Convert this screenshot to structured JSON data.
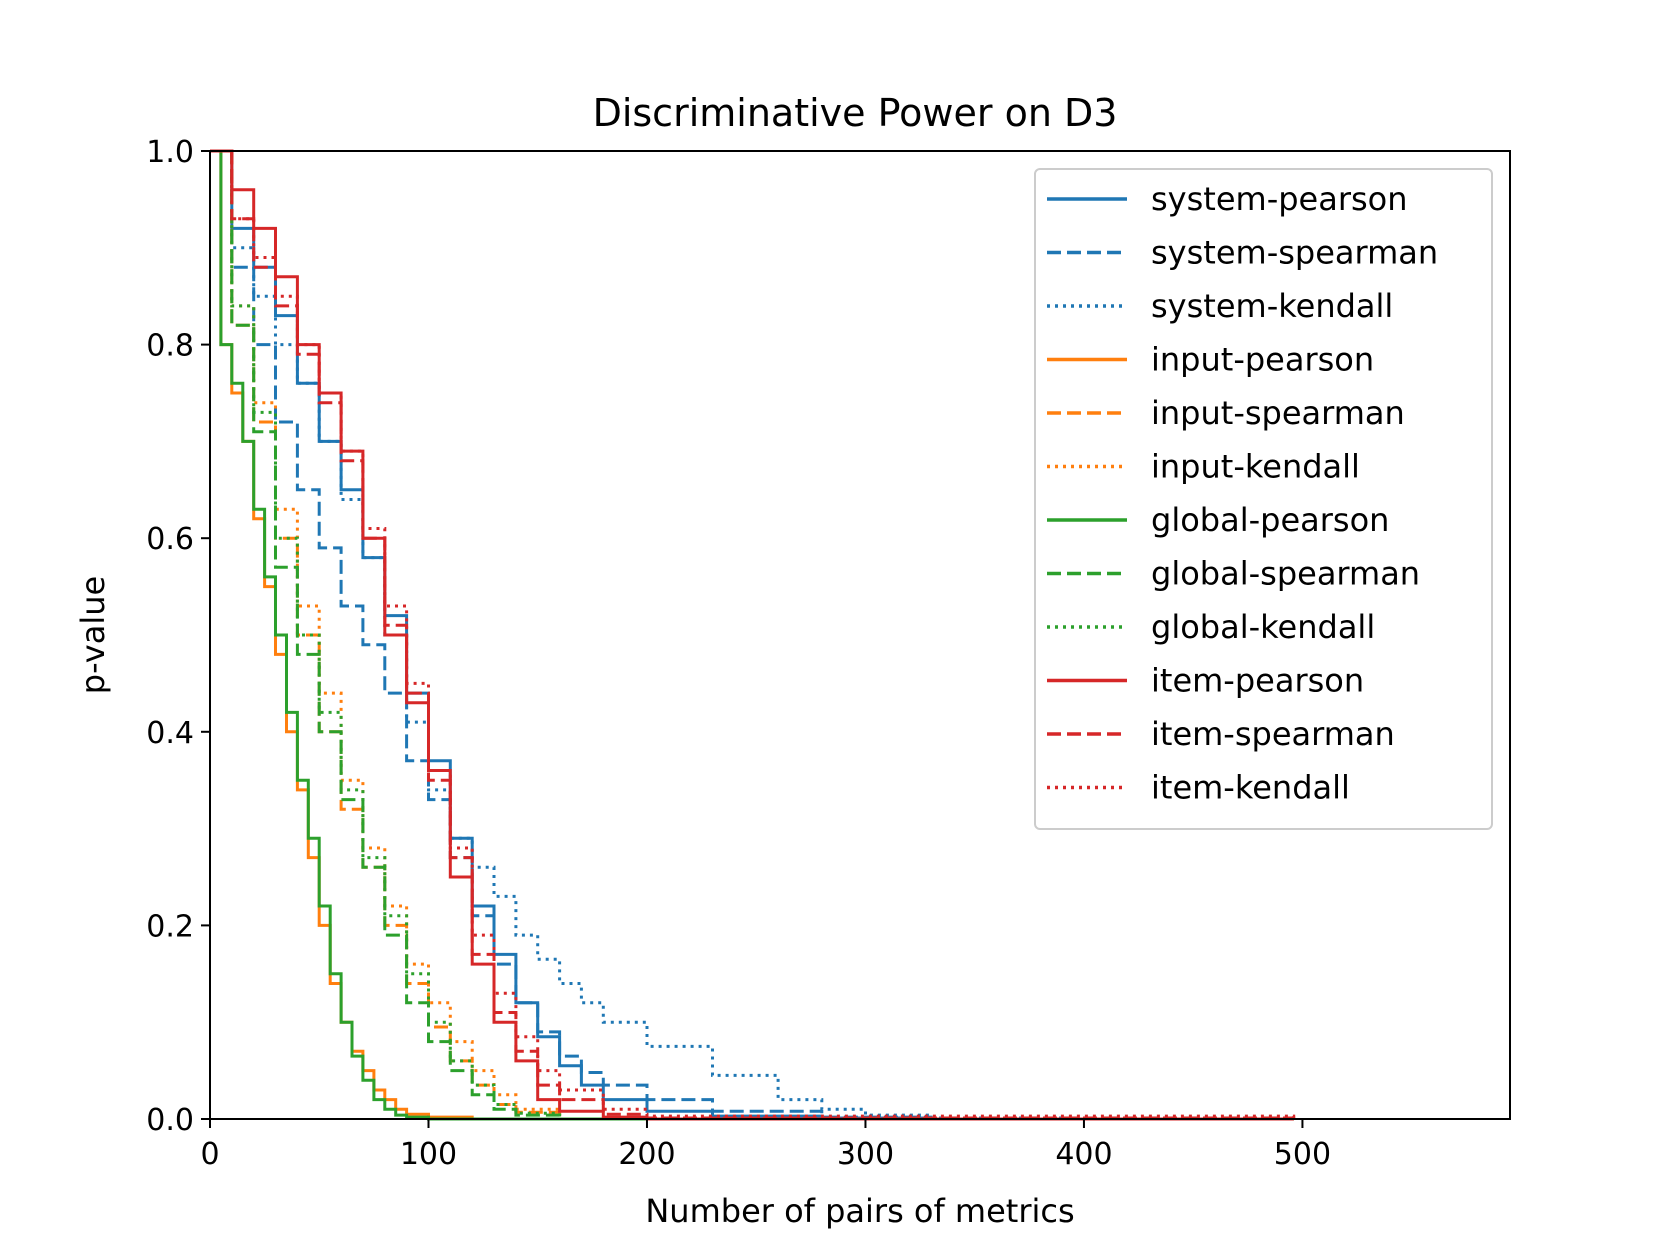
{
  "chart_data": {
    "type": "line",
    "title": "Discriminative Power on D3",
    "xlabel": "Number of pairs of metrics",
    "ylabel": "p-value",
    "xlim": [
      0,
      595
    ],
    "ylim": [
      0,
      1.0
    ],
    "xticks": [
      0,
      100,
      200,
      300,
      400,
      500
    ],
    "xtick_labels": [
      "0",
      "100",
      "200",
      "300",
      "400",
      "500"
    ],
    "yticks": [
      0.0,
      0.2,
      0.4,
      0.6,
      0.8,
      1.0
    ],
    "ytick_labels": [
      "0.0",
      "0.2",
      "0.4",
      "0.6",
      "0.8",
      "1.0"
    ],
    "grid": false,
    "legend_position": "top-right",
    "series": [
      {
        "name": "system-pearson",
        "color": "#1f77b4",
        "dash": "solid",
        "x": [
          0,
          10,
          20,
          30,
          40,
          50,
          60,
          70,
          80,
          90,
          100,
          110,
          120,
          130,
          140,
          150,
          160,
          170,
          180,
          200,
          230,
          280,
          330,
          400,
          496
        ],
        "y": [
          1.0,
          0.92,
          0.88,
          0.83,
          0.76,
          0.7,
          0.65,
          0.58,
          0.52,
          0.44,
          0.37,
          0.29,
          0.22,
          0.17,
          0.12,
          0.085,
          0.055,
          0.035,
          0.02,
          0.008,
          0.003,
          0.001,
          0.0,
          0.0,
          0.0
        ]
      },
      {
        "name": "system-spearman",
        "color": "#1f77b4",
        "dash": "dashed",
        "x": [
          0,
          10,
          20,
          30,
          40,
          50,
          60,
          70,
          80,
          90,
          100,
          110,
          120,
          130,
          140,
          150,
          160,
          170,
          180,
          200,
          230,
          280,
          330,
          400,
          496
        ],
        "y": [
          1.0,
          0.88,
          0.8,
          0.72,
          0.65,
          0.59,
          0.53,
          0.49,
          0.44,
          0.37,
          0.33,
          0.27,
          0.21,
          0.16,
          0.12,
          0.09,
          0.065,
          0.048,
          0.035,
          0.02,
          0.008,
          0.002,
          0.0,
          0.0,
          0.0
        ]
      },
      {
        "name": "system-kendall",
        "color": "#1f77b4",
        "dash": "dotted",
        "x": [
          0,
          10,
          20,
          30,
          40,
          50,
          60,
          70,
          80,
          90,
          100,
          110,
          120,
          130,
          140,
          150,
          160,
          170,
          180,
          200,
          230,
          260,
          280,
          300,
          330,
          400,
          496
        ],
        "y": [
          1.0,
          0.9,
          0.85,
          0.8,
          0.76,
          0.7,
          0.64,
          0.58,
          0.5,
          0.41,
          0.34,
          0.29,
          0.26,
          0.23,
          0.19,
          0.165,
          0.14,
          0.12,
          0.1,
          0.075,
          0.045,
          0.02,
          0.01,
          0.004,
          0.001,
          0.0,
          0.0
        ]
      },
      {
        "name": "input-pearson",
        "color": "#ff7f0e",
        "dash": "solid",
        "x": [
          0,
          5,
          10,
          15,
          20,
          25,
          30,
          35,
          40,
          45,
          50,
          55,
          60,
          65,
          70,
          75,
          80,
          85,
          90,
          100,
          120,
          496
        ],
        "y": [
          1.0,
          0.8,
          0.75,
          0.7,
          0.62,
          0.55,
          0.48,
          0.4,
          0.34,
          0.27,
          0.2,
          0.14,
          0.1,
          0.07,
          0.05,
          0.03,
          0.02,
          0.01,
          0.005,
          0.002,
          0.0,
          0.0
        ]
      },
      {
        "name": "input-spearman",
        "color": "#ff7f0e",
        "dash": "dashed",
        "x": [
          0,
          10,
          20,
          30,
          40,
          50,
          60,
          70,
          80,
          90,
          100,
          110,
          120,
          130,
          140,
          160,
          496
        ],
        "y": [
          1.0,
          0.82,
          0.72,
          0.6,
          0.5,
          0.4,
          0.32,
          0.26,
          0.2,
          0.14,
          0.095,
          0.06,
          0.035,
          0.015,
          0.007,
          0.0,
          0.0
        ]
      },
      {
        "name": "input-kendall",
        "color": "#ff7f0e",
        "dash": "dotted",
        "x": [
          0,
          10,
          20,
          30,
          40,
          50,
          60,
          70,
          80,
          90,
          100,
          110,
          120,
          130,
          140,
          160,
          496
        ],
        "y": [
          1.0,
          0.84,
          0.74,
          0.63,
          0.53,
          0.44,
          0.35,
          0.28,
          0.22,
          0.16,
          0.12,
          0.08,
          0.05,
          0.025,
          0.01,
          0.0,
          0.0
        ]
      },
      {
        "name": "global-pearson",
        "color": "#2ca02c",
        "dash": "solid",
        "x": [
          0,
          5,
          10,
          15,
          20,
          25,
          30,
          35,
          40,
          45,
          50,
          55,
          60,
          65,
          70,
          75,
          80,
          85,
          90,
          100,
          120,
          496
        ],
        "y": [
          1.0,
          0.8,
          0.76,
          0.7,
          0.63,
          0.56,
          0.5,
          0.42,
          0.35,
          0.29,
          0.22,
          0.15,
          0.1,
          0.065,
          0.04,
          0.02,
          0.01,
          0.004,
          0.002,
          0.0,
          0.0,
          0.0
        ]
      },
      {
        "name": "global-spearman",
        "color": "#2ca02c",
        "dash": "dashed",
        "x": [
          0,
          10,
          20,
          30,
          40,
          50,
          60,
          70,
          80,
          90,
          100,
          110,
          120,
          130,
          140,
          160,
          496
        ],
        "y": [
          1.0,
          0.82,
          0.71,
          0.57,
          0.48,
          0.4,
          0.33,
          0.26,
          0.19,
          0.12,
          0.08,
          0.05,
          0.025,
          0.01,
          0.004,
          0.0,
          0.0
        ]
      },
      {
        "name": "global-kendall",
        "color": "#2ca02c",
        "dash": "dotted",
        "x": [
          0,
          10,
          20,
          30,
          40,
          50,
          60,
          70,
          80,
          90,
          100,
          110,
          120,
          130,
          140,
          160,
          496
        ],
        "y": [
          1.0,
          0.84,
          0.73,
          0.6,
          0.5,
          0.42,
          0.34,
          0.27,
          0.21,
          0.15,
          0.1,
          0.06,
          0.035,
          0.015,
          0.006,
          0.0,
          0.0
        ]
      },
      {
        "name": "item-pearson",
        "color": "#d62728",
        "dash": "solid",
        "x": [
          0,
          10,
          20,
          30,
          40,
          50,
          60,
          70,
          80,
          90,
          100,
          110,
          120,
          130,
          140,
          150,
          160,
          180,
          200,
          496
        ],
        "y": [
          1.0,
          0.96,
          0.92,
          0.87,
          0.8,
          0.75,
          0.69,
          0.6,
          0.5,
          0.43,
          0.36,
          0.25,
          0.16,
          0.1,
          0.06,
          0.02,
          0.008,
          0.002,
          0.0,
          0.0
        ]
      },
      {
        "name": "item-spearman",
        "color": "#d62728",
        "dash": "dashed",
        "x": [
          0,
          10,
          20,
          30,
          40,
          50,
          60,
          70,
          80,
          90,
          100,
          110,
          120,
          130,
          140,
          150,
          160,
          180,
          200,
          496
        ],
        "y": [
          1.0,
          0.93,
          0.88,
          0.84,
          0.79,
          0.74,
          0.68,
          0.6,
          0.51,
          0.44,
          0.35,
          0.27,
          0.17,
          0.11,
          0.07,
          0.035,
          0.02,
          0.005,
          0.001,
          0.0
        ]
      },
      {
        "name": "item-kendall",
        "color": "#d62728",
        "dash": "dotted",
        "x": [
          0,
          10,
          20,
          30,
          40,
          50,
          60,
          70,
          80,
          90,
          100,
          110,
          120,
          130,
          140,
          150,
          160,
          180,
          200,
          496
        ],
        "y": [
          1.0,
          0.93,
          0.89,
          0.85,
          0.8,
          0.75,
          0.69,
          0.61,
          0.53,
          0.45,
          0.36,
          0.28,
          0.19,
          0.13,
          0.085,
          0.05,
          0.03,
          0.01,
          0.003,
          0.0
        ]
      }
    ]
  }
}
